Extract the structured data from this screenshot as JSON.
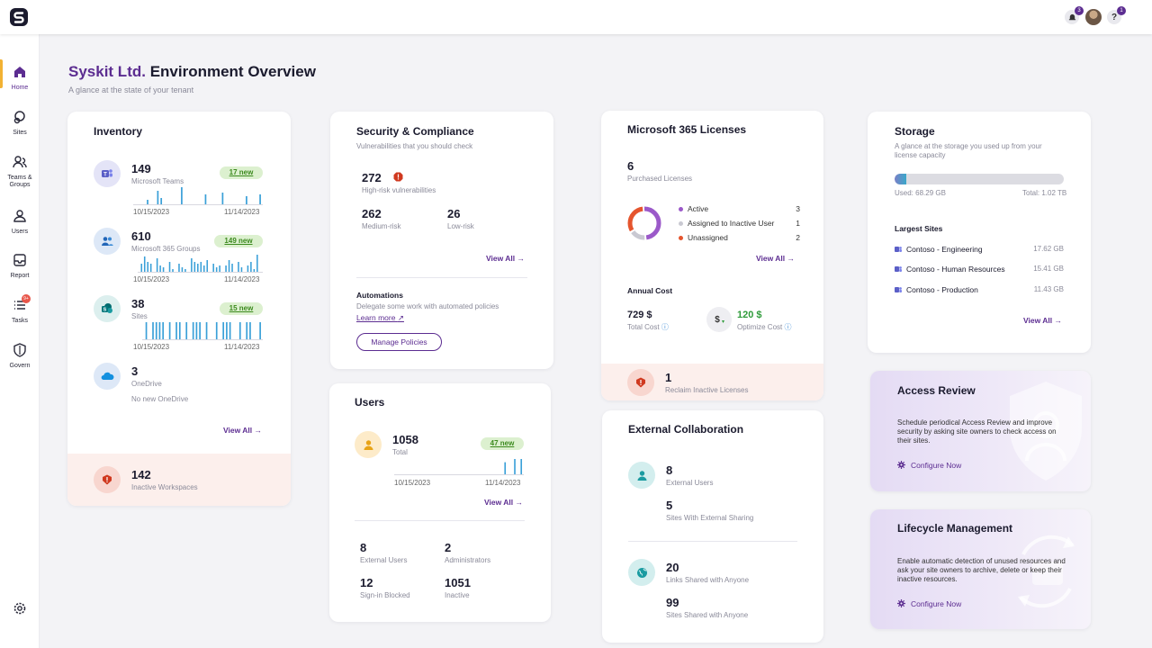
{
  "topbar": {
    "notifications_count": "3",
    "help_count": "1",
    "help_label": "?"
  },
  "sidebar": {
    "items": [
      {
        "label": "Home"
      },
      {
        "label": "Sites"
      },
      {
        "label": "Teams & Groups"
      },
      {
        "label": "Users"
      },
      {
        "label": "Report"
      },
      {
        "label": "Tasks",
        "badge": "9+"
      },
      {
        "label": "Govern"
      }
    ]
  },
  "header": {
    "brand": "Syskit Ltd.",
    "title_rest": " Environment Overview",
    "subtitle": "A glance at the state of your tenant"
  },
  "inventory": {
    "title": "Inventory",
    "teams": {
      "count": "149",
      "label": "Microsoft Teams",
      "badge": "17 new",
      "start": "10/15/2023",
      "end": "11/14/2023",
      "spark": [
        0,
        0,
        0,
        0,
        3,
        0,
        0,
        8,
        4,
        0,
        0,
        0,
        0,
        0,
        10,
        0,
        0,
        0,
        0,
        0,
        0,
        6,
        0,
        0,
        0,
        0,
        7,
        0,
        0,
        0,
        0,
        0,
        0,
        5,
        0,
        0,
        0,
        6
      ]
    },
    "groups": {
      "count": "610",
      "label": "Microsoft 365 Groups",
      "badge": "149 new",
      "start": "10/15/2023",
      "end": "11/14/2023",
      "spark": [
        0,
        5,
        9,
        6,
        5,
        0,
        8,
        4,
        3,
        0,
        6,
        2,
        0,
        5,
        3,
        2,
        0,
        8,
        6,
        5,
        6,
        4,
        7,
        0,
        5,
        3,
        4,
        0,
        4,
        7,
        5,
        0,
        6,
        3,
        0,
        4,
        6,
        2,
        10,
        0
      ]
    },
    "sites": {
      "count": "38",
      "label": "Sites",
      "badge": "15 new",
      "start": "10/15/2023",
      "end": "11/14/2023",
      "spark": [
        0,
        7,
        0,
        7,
        7,
        7,
        7,
        0,
        7,
        0,
        7,
        7,
        0,
        7,
        0,
        7,
        7,
        7,
        0,
        7,
        0,
        0,
        7,
        0,
        7,
        7,
        7,
        0,
        0,
        7,
        0,
        7,
        7,
        0,
        0,
        7
      ]
    },
    "onedrive": {
      "count": "3",
      "label": "OneDrive",
      "note": "No new OneDrive"
    },
    "view_all": "View All",
    "footer": {
      "count": "142",
      "label": "Inactive Workspaces"
    }
  },
  "security": {
    "title": "Security & Compliance",
    "subtitle": "Vulnerabilities that you should check",
    "high": {
      "count": "272",
      "label": "High-risk vulnerabilities"
    },
    "medium": {
      "count": "262",
      "label": "Medium-risk"
    },
    "low": {
      "count": "26",
      "label": "Low-risk"
    },
    "view_all": "View All",
    "automations": {
      "title": "Automations",
      "text": "Delegate some work with automated policies",
      "learn_more": "Learn more",
      "button": "Manage Policies"
    }
  },
  "licenses": {
    "title": "Microsoft 365 Licenses",
    "purchased": {
      "count": "6",
      "label": "Purchased Licenses"
    },
    "legend": [
      {
        "label": "Active",
        "value": "3",
        "color": "#9b59c9"
      },
      {
        "label": "Assigned to Inactive User",
        "value": "1",
        "color": "#c9c9d2"
      },
      {
        "label": "Unassigned",
        "value": "2",
        "color": "#e5552e"
      }
    ],
    "view_all": "View All",
    "annual_cost_title": "Annual Cost",
    "total_cost": {
      "value": "729 $",
      "label": "Total Cost"
    },
    "optimize_cost": {
      "value": "120 $",
      "label": "Optimize Cost"
    },
    "footer": {
      "count": "1",
      "label": "Reclaim Inactive Licenses"
    }
  },
  "storage": {
    "title": "Storage",
    "subtitle": "A glance at the storage you used up from your license capacity",
    "used": "Used: 68.29 GB",
    "total": "Total: 1.02 TB",
    "used_fraction": 0.067,
    "largest_title": "Largest Sites",
    "sites": [
      {
        "name": "Contoso - Engineering",
        "size": "17.62 GB"
      },
      {
        "name": "Contoso - Human Resources",
        "size": "15.41 GB"
      },
      {
        "name": "Contoso - Production",
        "size": "11.43 GB"
      }
    ],
    "view_all": "View All"
  },
  "users": {
    "title": "Users",
    "total": {
      "count": "1058",
      "label": "Total",
      "badge": "47 new",
      "start": "10/15/2023",
      "end": "11/14/2023",
      "spark": [
        0,
        0,
        0,
        0,
        0,
        0,
        0,
        0,
        0,
        0,
        0,
        0,
        0,
        0,
        0,
        0,
        0,
        0,
        0,
        0,
        0,
        0,
        0,
        0,
        0,
        0,
        0,
        0,
        0,
        0,
        0,
        0,
        0,
        0,
        8,
        0,
        0,
        10,
        0,
        10
      ]
    },
    "view_all": "View All",
    "external": {
      "count": "8",
      "label": "External Users"
    },
    "admins": {
      "count": "2",
      "label": "Administrators"
    },
    "blocked": {
      "count": "12",
      "label": "Sign-in Blocked"
    },
    "inactive": {
      "count": "1051",
      "label": "Inactive"
    }
  },
  "external": {
    "title": "External Collaboration",
    "external_users": {
      "count": "8",
      "label": "External Users"
    },
    "sites_sharing": {
      "count": "5",
      "label": "Sites With External Sharing"
    },
    "links_anyone": {
      "count": "20",
      "label": "Links Shared with Anyone"
    },
    "sites_anyone": {
      "count": "99",
      "label": "Sites Shared with Anyone"
    }
  },
  "access_review": {
    "title": "Access Review",
    "text": "Schedule periodical Access Review and improve security by asking site owners to check access on their sites.",
    "cta": "Configure Now"
  },
  "lifecycle": {
    "title": "Lifecycle Management",
    "text": "Enable automatic detection of unused resources and ask your site owners to archive, delete or keep their inactive resources.",
    "cta": "Configure Now"
  }
}
